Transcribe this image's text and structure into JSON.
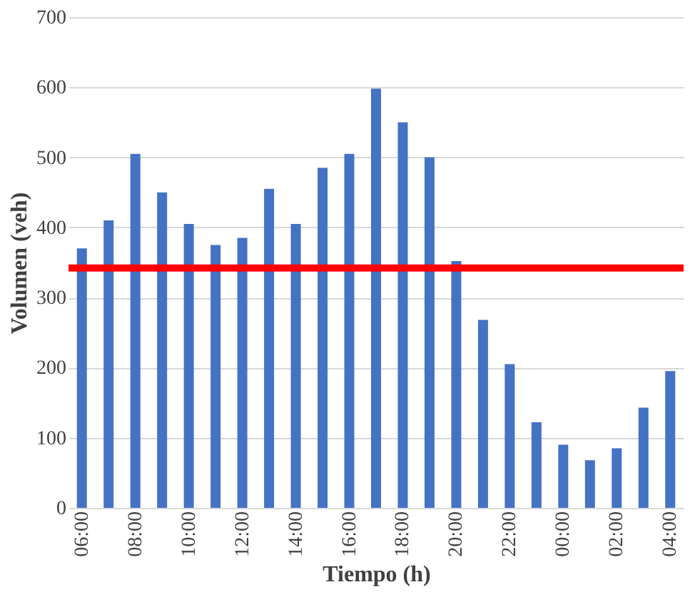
{
  "chart_data": {
    "type": "bar",
    "xlabel": "Tiempo (h)",
    "ylabel": "Volumen (veh)",
    "categories": [
      "06:00",
      null,
      "08:00",
      null,
      "10:00",
      null,
      "12:00",
      null,
      "14:00",
      null,
      "16:00",
      null,
      "18:00",
      null,
      "20:00",
      null,
      "22:00",
      null,
      "00:00",
      null,
      "02:00",
      null,
      "04:00"
    ],
    "series": [
      {
        "color": "#4472c4",
        "values": [
          370,
          410,
          505,
          450,
          405,
          375,
          385,
          455,
          405,
          485,
          505,
          598,
          550,
          500,
          352,
          268,
          205,
          122,
          90,
          68,
          85,
          143,
          195
        ]
      }
    ],
    "ylim": [
      0,
      700
    ],
    "yticks": [
      0,
      100,
      200,
      300,
      400,
      500,
      600,
      700
    ],
    "grid": "y",
    "ref_lines": [
      {
        "axis": "y",
        "value": 342,
        "color": "#ff0000"
      }
    ]
  }
}
